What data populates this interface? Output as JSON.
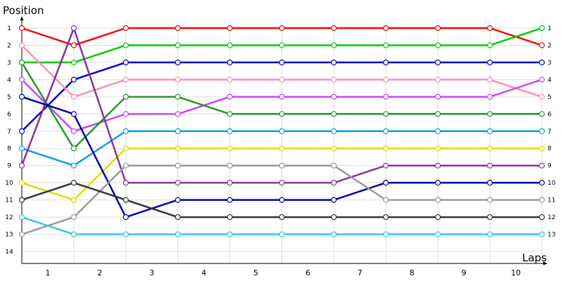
{
  "chart_data": {
    "type": "line",
    "ylabel": "Position",
    "xlabel": "Laps",
    "x": [
      0,
      1,
      2,
      3,
      4,
      5,
      6,
      7,
      8,
      9,
      10
    ],
    "x_tick_labels": [
      "1",
      "2",
      "3",
      "4",
      "5",
      "6",
      "7",
      "8",
      "9",
      "10"
    ],
    "y_tick_labels": [
      "1",
      "2",
      "3",
      "4",
      "5",
      "6",
      "7",
      "8",
      "9",
      "10",
      "11",
      "12",
      "13",
      "14"
    ],
    "ylim": [
      1,
      14
    ],
    "y_inverted": true,
    "grid": true,
    "series": [
      {
        "color": "#ff0000",
        "values": [
          1,
          2,
          1,
          1,
          1,
          1,
          1,
          1,
          1,
          1,
          2
        ]
      },
      {
        "color": "#00cc00",
        "values": [
          3,
          3,
          2,
          2,
          2,
          2,
          2,
          2,
          2,
          2,
          1
        ]
      },
      {
        "color": "#0000cc",
        "values": [
          7,
          4,
          3,
          3,
          3,
          3,
          3,
          3,
          3,
          3,
          3
        ]
      },
      {
        "color": "#ff8fb0",
        "values": [
          2,
          5,
          4,
          4,
          4,
          4,
          4,
          4,
          4,
          4,
          5
        ]
      },
      {
        "color": "#cc44ff",
        "values": [
          4,
          7,
          6,
          6,
          5,
          5,
          5,
          5,
          5,
          5,
          4
        ]
      },
      {
        "color": "#229922",
        "values": [
          3,
          8,
          5,
          5,
          6,
          6,
          6,
          6,
          6,
          6,
          6
        ]
      },
      {
        "color": "#1199ee",
        "values": [
          8,
          9,
          7,
          7,
          7,
          7,
          7,
          7,
          7,
          7,
          7
        ]
      },
      {
        "color": "#dddd00",
        "values": [
          10,
          11,
          8,
          8,
          8,
          8,
          8,
          8,
          8,
          8,
          8
        ]
      },
      {
        "color": "#883399",
        "values": [
          9,
          1,
          10,
          10,
          10,
          10,
          10,
          9,
          9,
          9,
          9
        ]
      },
      {
        "color": "#0000aa",
        "values": [
          5,
          6,
          12,
          11,
          11,
          11,
          11,
          10,
          10,
          10,
          10
        ]
      },
      {
        "color": "#999999",
        "values": [
          13,
          12,
          9,
          9,
          9,
          9,
          9,
          11,
          11,
          11,
          11
        ]
      },
      {
        "color": "#333333",
        "values": [
          11,
          10,
          11,
          12,
          12,
          12,
          12,
          12,
          12,
          12,
          12
        ]
      },
      {
        "color": "#33cccc",
        "values": [
          12,
          13,
          13,
          13,
          13,
          13,
          13,
          13,
          13,
          13,
          13
        ]
      }
    ],
    "end_labels": [
      "1",
      "2",
      "3",
      "4",
      "5",
      "6",
      "7",
      "8",
      "9",
      "10",
      "11",
      "12",
      "13"
    ]
  }
}
